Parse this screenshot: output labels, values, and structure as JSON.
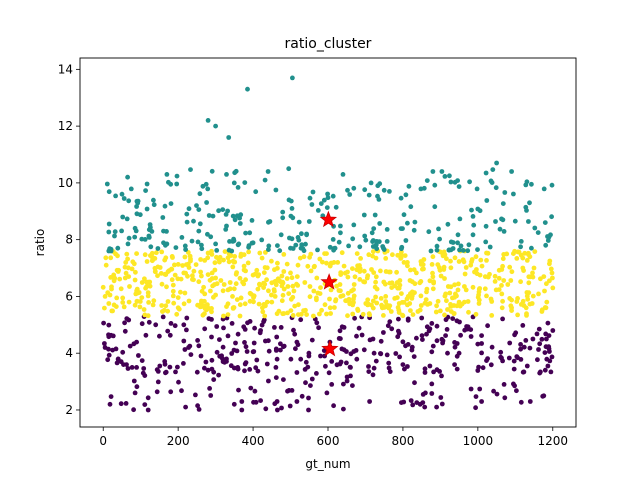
{
  "chart_data": {
    "type": "scatter",
    "title": "ratio_cluster",
    "xlabel": "gt_num",
    "ylabel": "ratio",
    "xlim": [
      -62,
      1262
    ],
    "ylim": [
      1.4,
      14.4
    ],
    "xticks": [
      0,
      200,
      400,
      600,
      800,
      1000,
      1200
    ],
    "yticks": [
      2,
      4,
      6,
      8,
      10,
      12,
      14
    ],
    "grid": false,
    "legend": "none",
    "colors": {
      "cluster_low": "#440154",
      "cluster_mid": "#fde725",
      "cluster_high": "#21908d",
      "centroid": "#ff0000",
      "centroid_edge": "#c80000"
    },
    "series": [
      {
        "cluster": "low",
        "color": "#440154",
        "points_estimated": 430,
        "y_range": [
          2.0,
          5.3
        ],
        "x_range": [
          0,
          1200
        ],
        "sample_points": [
          [
            5,
            4.2
          ],
          [
            18,
            2.2
          ],
          [
            40,
            3.8
          ],
          [
            85,
            2.6
          ],
          [
            120,
            2.0
          ],
          [
            150,
            4.6
          ],
          [
            220,
            2.1
          ],
          [
            280,
            3.4
          ],
          [
            320,
            5.2
          ],
          [
            350,
            2.2
          ],
          [
            420,
            4.8
          ],
          [
            465,
            2.0
          ],
          [
            520,
            4.3
          ],
          [
            580,
            3.9
          ],
          [
            660,
            3.2
          ],
          [
            720,
            4.5
          ],
          [
            800,
            3.6
          ],
          [
            860,
            2.6
          ],
          [
            890,
            2.1
          ],
          [
            950,
            4.0
          ],
          [
            1010,
            2.3
          ],
          [
            1070,
            2.9
          ],
          [
            1140,
            2.3
          ],
          [
            1180,
            3.4
          ],
          [
            1200,
            4.8
          ]
        ]
      },
      {
        "cluster": "mid",
        "color": "#fde725",
        "points_estimated": 700,
        "y_range": [
          5.3,
          7.6
        ],
        "x_range": [
          0,
          1200
        ],
        "sample_points": [
          [
            5,
            6.0
          ],
          [
            60,
            7.2
          ],
          [
            120,
            6.5
          ],
          [
            200,
            5.6
          ],
          [
            260,
            7.3
          ],
          [
            320,
            6.2
          ],
          [
            380,
            6.9
          ],
          [
            450,
            5.8
          ],
          [
            520,
            7.1
          ],
          [
            600,
            6.4
          ],
          [
            680,
            5.5
          ],
          [
            740,
            6.9
          ],
          [
            820,
            6.1
          ],
          [
            880,
            7.4
          ],
          [
            950,
            5.8
          ],
          [
            1020,
            6.7
          ],
          [
            1090,
            5.5
          ],
          [
            1150,
            7.0
          ],
          [
            1200,
            6.3
          ]
        ]
      },
      {
        "cluster": "high",
        "color": "#21908d",
        "points_estimated": 320,
        "y_range": [
          7.6,
          13.7
        ],
        "x_range": [
          10,
          1200
        ],
        "sample_points": [
          [
            15,
            7.6
          ],
          [
            65,
            10.2
          ],
          [
            170,
            10.3
          ],
          [
            280,
            12.2
          ],
          [
            300,
            12.0
          ],
          [
            335,
            11.6
          ],
          [
            385,
            13.3
          ],
          [
            440,
            10.4
          ],
          [
            505,
            13.7
          ],
          [
            495,
            10.5
          ],
          [
            640,
            10.3
          ],
          [
            715,
            10.0
          ],
          [
            880,
            10.4
          ],
          [
            1050,
            10.7
          ],
          [
            1090,
            10.4
          ],
          [
            1180,
            8.6
          ]
        ]
      }
    ],
    "centroids": [
      {
        "x": 601,
        "y": 8.7
      },
      {
        "x": 603,
        "y": 6.5
      },
      {
        "x": 605,
        "y": 4.15
      }
    ]
  }
}
